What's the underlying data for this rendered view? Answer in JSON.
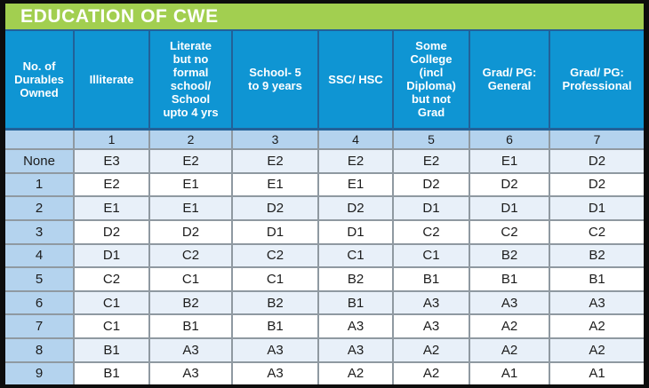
{
  "title": "EDUCATION OF CWE",
  "colors": {
    "outer_border": "#0d0d0d",
    "title_bg": "#a2cf50",
    "title_text": "#ffffff",
    "header_bg": "#0f95d3",
    "header_border": "#226198",
    "header_text": "#ffffff",
    "label_bg": "#b4d3ee",
    "row_alt_bg": "#e8f0f9",
    "row_bg": "#ffffff",
    "grid_border": "#8f99a1",
    "cell_text": "#1c1c1c"
  },
  "chart_data": {
    "type": "table",
    "title": "EDUCATION OF CWE",
    "corner_header": "No. of\nDurables\nOwned",
    "columns": [
      "Illiterate",
      "Literate\nbut no\nformal\nschool/\nSchool\nupto 4 yrs",
      "School- 5\nto 9 years",
      "SSC/ HSC",
      "Some\nCollege\n(incl\nDiploma)\nbut not\nGrad",
      "Grad/ PG:\nGeneral",
      "Grad/ PG:\nProfessional"
    ],
    "column_numbers": [
      "1",
      "2",
      "3",
      "4",
      "5",
      "6",
      "7"
    ],
    "rows": [
      {
        "label": "None",
        "values": [
          "E3",
          "E2",
          "E2",
          "E2",
          "E2",
          "E1",
          "D2"
        ]
      },
      {
        "label": "1",
        "values": [
          "E2",
          "E1",
          "E1",
          "E1",
          "D2",
          "D2",
          "D2"
        ]
      },
      {
        "label": "2",
        "values": [
          "E1",
          "E1",
          "D2",
          "D2",
          "D1",
          "D1",
          "D1"
        ]
      },
      {
        "label": "3",
        "values": [
          "D2",
          "D2",
          "D1",
          "D1",
          "C2",
          "C2",
          "C2"
        ]
      },
      {
        "label": "4",
        "values": [
          "D1",
          "C2",
          "C2",
          "C1",
          "C1",
          "B2",
          "B2"
        ]
      },
      {
        "label": "5",
        "values": [
          "C2",
          "C1",
          "C1",
          "B2",
          "B1",
          "B1",
          "B1"
        ]
      },
      {
        "label": "6",
        "values": [
          "C1",
          "B2",
          "B2",
          "B1",
          "A3",
          "A3",
          "A3"
        ]
      },
      {
        "label": "7",
        "values": [
          "C1",
          "B1",
          "B1",
          "A3",
          "A3",
          "A2",
          "A2"
        ]
      },
      {
        "label": "8",
        "values": [
          "B1",
          "A3",
          "A3",
          "A3",
          "A2",
          "A2",
          "A2"
        ]
      },
      {
        "label": "9",
        "values": [
          "B1",
          "A3",
          "A3",
          "A2",
          "A2",
          "A1",
          "A1"
        ]
      }
    ]
  }
}
